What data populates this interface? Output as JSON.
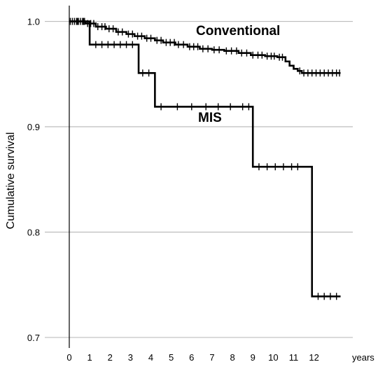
{
  "chart_data": {
    "type": "line",
    "ylabel": "Cumulative survival",
    "xlabel": "",
    "x_unit_label": "years",
    "xlim": [
      -1.2,
      13.9
    ],
    "ylim": [
      0.69,
      1.015
    ],
    "x_ticks": [
      0,
      1,
      2,
      3,
      4,
      5,
      6,
      7,
      8,
      9,
      10,
      11,
      12
    ],
    "x_tick_labels": [
      "0",
      "1",
      "2",
      "3",
      "4",
      "5",
      "6",
      "7",
      "8",
      "9",
      "10",
      "11",
      "12"
    ],
    "y_ticks": [
      0.7,
      0.8,
      0.9,
      1.0
    ],
    "y_tick_labels": [
      "0.7",
      "0.8",
      "0.9",
      "1.0"
    ],
    "grid": true,
    "series": [
      {
        "name": "Conventional",
        "step": true,
        "x": [
          0,
          0.8,
          1.3,
          1.8,
          2.3,
          2.8,
          3.2,
          3.7,
          4.2,
          4.6,
          5.2,
          5.8,
          6.4,
          7.0,
          7.6,
          8.3,
          8.9,
          9.6,
          10.2,
          10.6,
          10.8,
          11.0,
          11.2,
          11.4,
          13.3
        ],
        "y": [
          1.0,
          0.998,
          0.995,
          0.993,
          0.99,
          0.988,
          0.986,
          0.984,
          0.982,
          0.98,
          0.978,
          0.976,
          0.974,
          0.973,
          0.972,
          0.97,
          0.968,
          0.967,
          0.966,
          0.962,
          0.958,
          0.955,
          0.953,
          0.951,
          0.951
        ],
        "censored_x": [
          0.05,
          0.15,
          0.25,
          0.35,
          0.45,
          0.55,
          0.65,
          0.75,
          0.9,
          1.05,
          1.2,
          1.4,
          1.6,
          1.75,
          1.95,
          2.15,
          2.4,
          2.6,
          2.9,
          3.1,
          3.35,
          3.55,
          3.8,
          4.0,
          4.3,
          4.5,
          4.75,
          4.95,
          5.15,
          5.35,
          5.6,
          5.9,
          6.1,
          6.3,
          6.55,
          6.8,
          7.1,
          7.35,
          7.7,
          7.95,
          8.2,
          8.45,
          8.7,
          9.0,
          9.25,
          9.45,
          9.7,
          9.9,
          10.05,
          10.3,
          10.45,
          11.3,
          11.5,
          11.7,
          11.9,
          12.1,
          12.3,
          12.5,
          12.7,
          12.9,
          13.1,
          13.25
        ]
      },
      {
        "name": "MIS",
        "step": true,
        "x": [
          0,
          1.0,
          3.4,
          4.2,
          9.0,
          11.9,
          13.3
        ],
        "y": [
          1.0,
          0.978,
          0.951,
          0.919,
          0.862,
          0.739,
          0.739
        ],
        "censored_x": [
          0.4,
          0.7,
          1.3,
          1.6,
          1.9,
          2.2,
          2.5,
          2.8,
          3.1,
          3.6,
          3.9,
          4.5,
          5.3,
          6.0,
          6.7,
          7.3,
          7.9,
          8.5,
          8.8,
          9.3,
          9.7,
          10.1,
          10.5,
          10.9,
          11.2,
          12.2,
          12.5,
          12.8,
          13.1
        ]
      }
    ]
  }
}
